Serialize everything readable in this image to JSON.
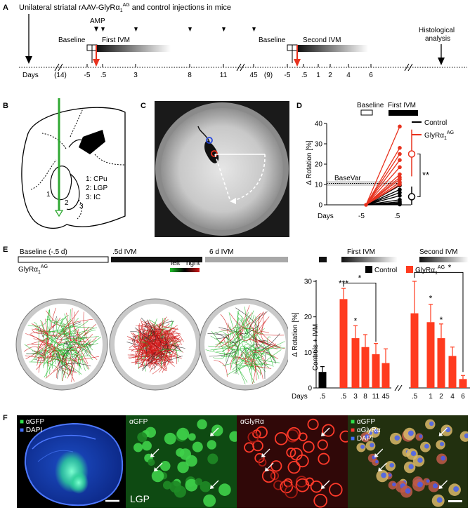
{
  "panels": {
    "a": {
      "letter": "A",
      "title": "Unilateral striatal rAAV-GlyRα",
      "title_sub": "1",
      "title_sup": "AG",
      "title_tail": " and control injections in mice",
      "amp_label": "AMP",
      "baseline_label_1": "Baseline",
      "first_ivm_label": "First IVM",
      "baseline_label_2": "Baseline",
      "second_ivm_label": "Second IVM",
      "histology_label_1": "Histological",
      "histology_label_2": "analysis",
      "days_label": "Days",
      "day_ticks": [
        "(14)",
        "-5",
        ".5",
        "3",
        "8",
        "11",
        "45",
        "(9)",
        "-5",
        ".5",
        "1",
        "2",
        "4",
        "6"
      ]
    },
    "b": {
      "letter": "B",
      "region_numbers": [
        "1",
        "2",
        "3"
      ],
      "legend": [
        "1: CPu",
        "2: LGP",
        "3: IC"
      ]
    },
    "c": {
      "letter": "C"
    },
    "d": {
      "letter": "D",
      "baseline_label": "Baseline",
      "first_ivm_label": "First IVM",
      "legend_control": "Control",
      "legend_glyr": "GlyRα",
      "legend_glyr_sub": "1",
      "legend_glyr_sup": "AG",
      "basevar_label": "BaseVar",
      "ylabel": "Δ Rotation [%]",
      "yticks": [
        "0",
        "10",
        "20",
        "30",
        "40"
      ],
      "days_label": "Days",
      "xticks": [
        "-5",
        ".5"
      ],
      "significance": "**"
    },
    "e": {
      "letter": "E",
      "bar_labels": [
        "Baseline (-.5 d)",
        ".5d IVM",
        "6 d IVM"
      ],
      "glyr_label": "GlyRα",
      "glyr_sub": "1",
      "glyr_sup": "AG",
      "left_label": "left",
      "right_label": "right",
      "first_ivm_label": "First IVM",
      "second_ivm_label": "Second IVM",
      "legend_control": "Control",
      "legend_glyr": "GlyRα",
      "legend_glyr_sub": "1",
      "legend_glyr_sup": "AG",
      "controls_label": "Controls + IVM",
      "ylabel": "Δ Rotation [%]",
      "yticks": [
        "0",
        "10",
        "20",
        "30"
      ],
      "days_label": "Days",
      "sig_first": [
        "***",
        "*",
        "*"
      ],
      "sig_second": [
        "*",
        "*",
        "*"
      ]
    },
    "f": {
      "letter": "F",
      "overview_legend": [
        "αGFP",
        "DAPI"
      ],
      "gfp_label": "αGFP",
      "glyr_label": "αGlyRα",
      "merge_legend": [
        "αGFP",
        "αGlyRα",
        "DAPI"
      ],
      "region_label": "LGP"
    }
  },
  "chart_data": [
    {
      "type": "line",
      "panel": "D",
      "xlabel": "Days",
      "ylabel": "Δ Rotation [%]",
      "x": [
        "-5",
        ".5"
      ],
      "ylim": [
        0,
        40
      ],
      "basevar": 10.5,
      "series": [
        {
          "name": "Control",
          "color": "#000000",
          "values_at_0_5": [
            9.5,
            7.5,
            6,
            4.5,
            2.5,
            1.5,
            1,
            0.5,
            0.2
          ],
          "mean": 4,
          "sd_range": [
            0,
            9
          ]
        },
        {
          "name": "GlyRα1AG",
          "color": "#e8321e",
          "values_at_0_5": [
            38.5,
            28,
            25,
            22,
            18.5,
            15,
            13.5,
            12.5,
            11,
            10
          ],
          "mean": 25,
          "sd_range": [
            14,
            37
          ]
        }
      ]
    },
    {
      "type": "bar",
      "panel": "E",
      "xlabel": "Days",
      "ylabel": "Δ Rotation [%]",
      "ylim": [
        0,
        30
      ],
      "series": [
        {
          "name": "Control",
          "color": "#000000",
          "categories": [
            ".5"
          ],
          "values": [
            4.5
          ],
          "errors": [
            1.5
          ]
        },
        {
          "name": "GlyRα1AG First IVM",
          "color": "#ff3b1f",
          "categories": [
            ".5",
            "3",
            "8",
            "11",
            "45"
          ],
          "values": [
            25,
            14,
            11.5,
            9.5,
            7
          ],
          "errors": [
            3,
            3.5,
            3.5,
            3,
            4
          ]
        },
        {
          "name": "GlyRα1AG Second IVM",
          "color": "#ff3b1f",
          "categories": [
            ".5",
            "1",
            "2",
            "4",
            "6"
          ],
          "values": [
            21,
            18.5,
            14,
            9,
            2.5
          ],
          "errors": [
            9,
            5,
            4,
            2.5,
            1
          ]
        }
      ]
    }
  ]
}
